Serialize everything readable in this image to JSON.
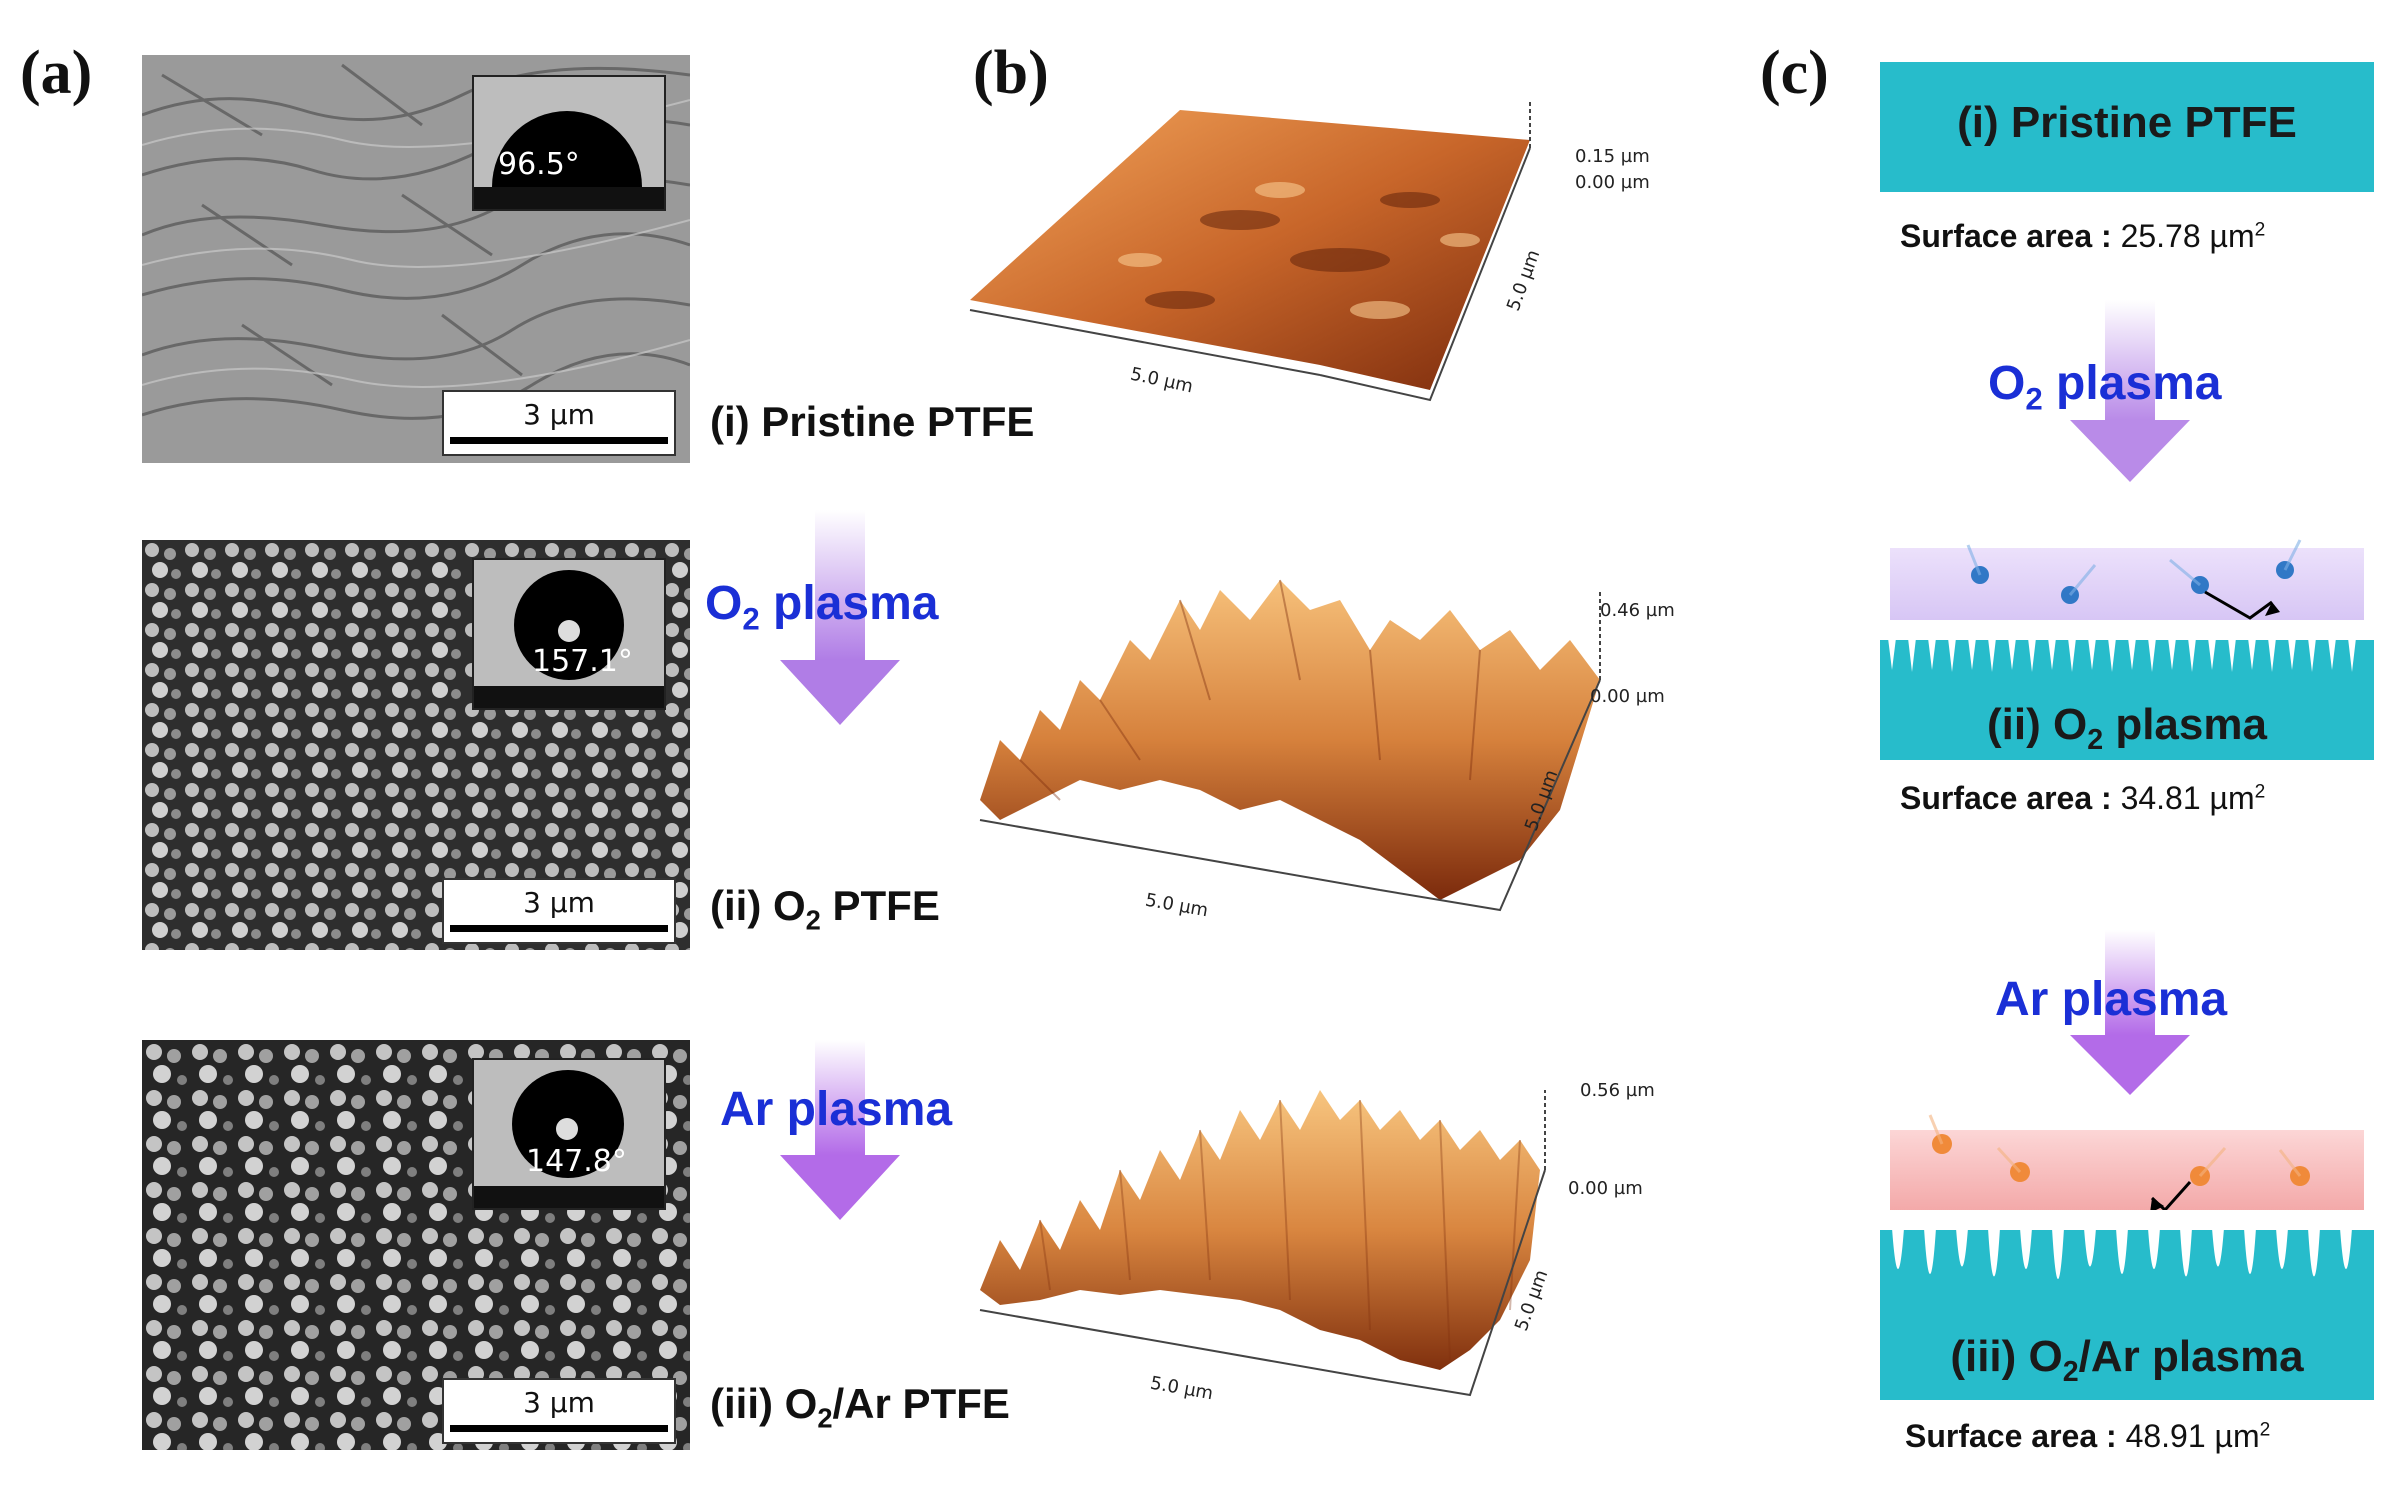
{
  "panels": {
    "a": "(a)",
    "b": "(b)",
    "c": "(c)"
  },
  "sem": [
    {
      "contact_angle": "96.5°",
      "scale": "3 µm",
      "caption_pre": "(i) Pristine PTFE",
      "caption_sub": "",
      "caption_post": ""
    },
    {
      "contact_angle": "157.1°",
      "scale": "3 µm",
      "caption_pre": "(ii) O",
      "caption_sub": "2",
      "caption_post": " PTFE"
    },
    {
      "contact_angle": "147.8°",
      "scale": "3 µm",
      "caption_pre": "(iii) O",
      "caption_sub": "2",
      "caption_post": "/Ar PTFE"
    }
  ],
  "arrows_a": [
    {
      "pre": "O",
      "sub": "2",
      "post": " plasma"
    },
    {
      "pre": "Ar plasma",
      "sub": "",
      "post": ""
    }
  ],
  "afm": [
    {
      "zmax": "0.15 µm",
      "zmin": "0.00 µm",
      "x": "5.0 µm",
      "y": "5.0 µm"
    },
    {
      "zmax": "0.46 µm",
      "zmin": "0.00 µm",
      "x": "5.0 µm",
      "y": "5.0 µm"
    },
    {
      "zmax": "0.56 µm",
      "zmin": "0.00 µm",
      "x": "5.0 µm",
      "y": "5.0 µm"
    }
  ],
  "schematic": {
    "steps": [
      {
        "pre": "(i) Pristine PTFE",
        "sub": "",
        "post": ""
      },
      {
        "pre": "(ii) O",
        "sub": "2",
        "post": " plasma"
      },
      {
        "pre": "(iii) O",
        "sub": "2",
        "post": "/Ar plasma"
      }
    ],
    "areas": [
      {
        "label": "Surface area :",
        "value": "25.78 µm",
        "sup": "2"
      },
      {
        "label": "Surface area :",
        "value": "34.81 µm",
        "sup": "2"
      },
      {
        "label": "Surface area :",
        "value": "48.91 µm",
        "sup": "2"
      }
    ],
    "arrows": [
      {
        "pre": "O",
        "sub": "2",
        "post": " plasma"
      },
      {
        "pre": "Ar plasma",
        "sub": "",
        "post": ""
      }
    ]
  },
  "colors": {
    "ptfe": "#27bccb",
    "o2_plasma": "#d9c8f5",
    "ar_plasma": "#f6b3b3",
    "arrow": "#b98be8",
    "text_blue": "#1a2fd6"
  }
}
